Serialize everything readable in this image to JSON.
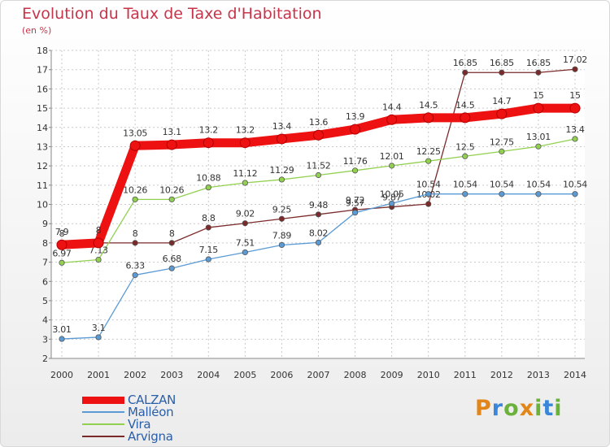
{
  "header": {
    "title": "Evolution du Taux de Taxe d'Habitation",
    "unit": "(en %)"
  },
  "logo": {
    "text": "Proxiti",
    "colors": [
      "#e3861a",
      "#3a86d9",
      "#6ab23a",
      "#e3861a",
      "#6ab23a",
      "#3a86d9",
      "#6ab23a"
    ]
  },
  "chart_data": {
    "type": "line",
    "x": [
      2000,
      2001,
      2002,
      2003,
      2004,
      2005,
      2006,
      2007,
      2008,
      2009,
      2010,
      2011,
      2012,
      2013,
      2014
    ],
    "ylim": [
      2,
      18
    ],
    "yticks": [
      2,
      3,
      4,
      5,
      6,
      7,
      8,
      9,
      10,
      11,
      12,
      13,
      14,
      15,
      16,
      17,
      18
    ],
    "grid": true,
    "legend_position": "bottom-left",
    "series": [
      {
        "name": "CALZAN",
        "color": "#ee1111",
        "values": [
          7.9,
          8,
          13.05,
          13.1,
          13.2,
          13.2,
          13.4,
          13.6,
          13.9,
          14.4,
          14.5,
          14.5,
          14.7,
          15,
          15
        ],
        "labels": [
          "7.9",
          "8",
          "13.05",
          "13.1",
          "13.2",
          "13.2",
          "13.4",
          "13.6",
          "13.9",
          "14.4",
          "14.5",
          "14.5",
          "14.7",
          "15",
          "15"
        ]
      },
      {
        "name": "Malléon",
        "color": "#5b9bd5",
        "values": [
          3.01,
          3.1,
          6.33,
          6.68,
          7.15,
          7.51,
          7.89,
          8.02,
          9.57,
          10.05,
          10.54,
          10.54,
          10.54,
          10.54,
          10.54
        ],
        "labels": [
          "3.01",
          "3.1",
          "6.33",
          "6.68",
          "7.15",
          "7.51",
          "7.89",
          "8.02",
          "9.57",
          "10.05",
          "10.54",
          "10.54",
          "10.54",
          "10.54",
          "10.54"
        ]
      },
      {
        "name": "Vira",
        "color": "#92d050",
        "values": [
          6.97,
          7.13,
          10.26,
          10.26,
          10.88,
          11.12,
          11.29,
          11.52,
          11.76,
          12.01,
          12.25,
          12.5,
          12.75,
          13.01,
          13.4
        ],
        "labels": [
          "6.97",
          "7.13",
          "10.26",
          "10.26",
          "10.88",
          "11.12",
          "11.29",
          "11.52",
          "11.76",
          "12.01",
          "12.25",
          "12.5",
          "12.75",
          "13.01",
          "13.4"
        ]
      },
      {
        "name": "Arvigna",
        "color": "#7b2a2a",
        "values": [
          8,
          8,
          8,
          8,
          8.8,
          9.02,
          9.25,
          9.48,
          9.72,
          9.87,
          10.02,
          16.85,
          16.85,
          16.85,
          17.02
        ],
        "labels": [
          "8",
          "8",
          "8",
          "8",
          "8.8",
          "9.02",
          "9.25",
          "9.48",
          "9.72",
          "9.87",
          "10.02",
          "16.85",
          "16.85",
          "16.85",
          "17.02"
        ]
      }
    ]
  }
}
